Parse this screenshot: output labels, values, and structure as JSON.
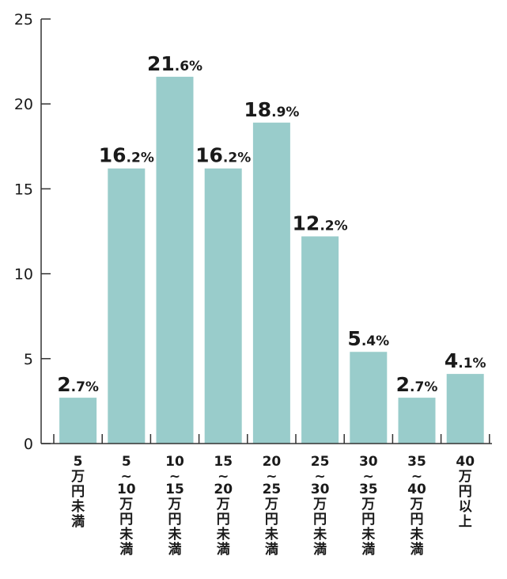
{
  "chart_data": {
    "type": "bar",
    "categories": [
      [
        "5",
        "万",
        "円",
        "未",
        "満"
      ],
      [
        "5",
        "~",
        "10",
        "万",
        "円",
        "未",
        "満"
      ],
      [
        "10",
        "~",
        "15",
        "万",
        "円",
        "未",
        "満"
      ],
      [
        "15",
        "~",
        "20",
        "万",
        "円",
        "未",
        "満"
      ],
      [
        "20",
        "~",
        "25",
        "万",
        "円",
        "未",
        "満"
      ],
      [
        "25",
        "~",
        "30",
        "万",
        "円",
        "未",
        "満"
      ],
      [
        "30",
        "~",
        "35",
        "万",
        "円",
        "未",
        "満"
      ],
      [
        "35",
        "~",
        "40",
        "万",
        "円",
        "未",
        "満"
      ],
      [
        "40",
        "万",
        "円",
        "以",
        "上"
      ]
    ],
    "values": [
      2.7,
      16.2,
      21.6,
      16.2,
      18.9,
      12.2,
      5.4,
      2.7,
      4.1
    ],
    "value_labels": [
      "2.7%",
      "16.2%",
      "21.6%",
      "16.2%",
      "18.9%",
      "12.2%",
      "5.4%",
      "2.7%",
      "4.1%"
    ],
    "ylim": [
      0,
      25
    ],
    "yticks": [
      0,
      5,
      10,
      15,
      20,
      25
    ],
    "ytick_labels": [
      "0",
      "5",
      "10",
      "15",
      "20",
      "25"
    ],
    "bar_color": "#99cccb",
    "axis_color": "#333333",
    "grid": false,
    "title": "",
    "xlabel": "",
    "ylabel": ""
  }
}
